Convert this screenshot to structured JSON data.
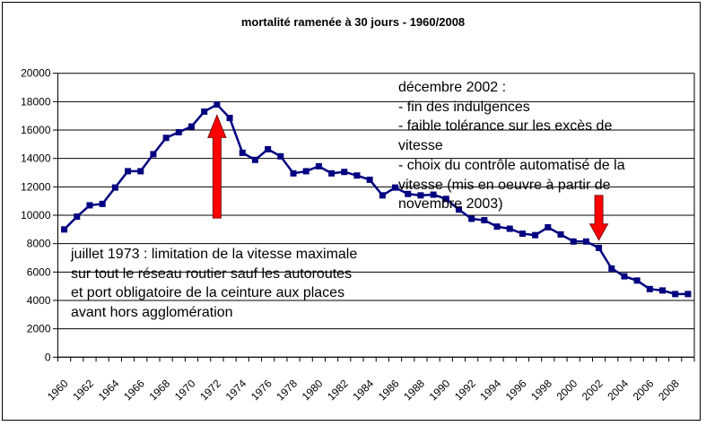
{
  "chart_data": {
    "type": "line",
    "title": "mortalité ramenée à 30 jours - 1960/2008",
    "x": [
      1960,
      1961,
      1962,
      1963,
      1964,
      1965,
      1966,
      1967,
      1968,
      1969,
      1970,
      1971,
      1972,
      1973,
      1974,
      1975,
      1976,
      1977,
      1978,
      1979,
      1980,
      1981,
      1982,
      1983,
      1984,
      1985,
      1986,
      1987,
      1988,
      1989,
      1990,
      1991,
      1992,
      1993,
      1994,
      1995,
      1996,
      1997,
      1998,
      1999,
      2000,
      2001,
      2002,
      2003,
      2004,
      2005,
      2006,
      2007,
      2008,
      2009
    ],
    "values": [
      9000,
      9900,
      10700,
      10800,
      11950,
      13100,
      13100,
      14300,
      15450,
      15850,
      16250,
      17300,
      17800,
      16850,
      14400,
      13900,
      14650,
      14150,
      12950,
      13100,
      13450,
      12950,
      13050,
      12800,
      12500,
      11400,
      11950,
      11500,
      11400,
      11450,
      11150,
      10400,
      9750,
      9650,
      9200,
      9050,
      8700,
      8600,
      9150,
      8650,
      8150,
      8150,
      7700,
      6250,
      5700,
      5400,
      4800,
      4700,
      4450,
      4450
    ],
    "ylim": [
      0,
      20000
    ],
    "yticks": [
      0,
      2000,
      4000,
      6000,
      8000,
      10000,
      12000,
      14000,
      16000,
      18000,
      20000
    ],
    "xtick_labels": [
      "1960",
      "1962",
      "1964",
      "1966",
      "1968",
      "1970",
      "1972",
      "1974",
      "1976",
      "1978",
      "1980",
      "1982",
      "1984",
      "1986",
      "1988",
      "1990",
      "1992",
      "1994",
      "1996",
      "1998",
      "2000",
      "2002",
      "2004",
      "2006",
      "2008"
    ],
    "grid": "horizontal",
    "legend": "none",
    "annotations": [
      {
        "id": "juillet-1973",
        "lines": [
          "juillet 1973 : limitation de la vitesse maximale",
          "sur tout le réseau routier sauf les autoroutes",
          "et port obligatoire de la ceinture aux places",
          "avant hors agglomération"
        ]
      },
      {
        "id": "decembre-2002",
        "lines": [
          "décembre 2002 :",
          "- fin des indulgences",
          "- faible tolérance sur les excès de",
          "vitesse",
          "- choix du contrôle automatisé de la",
          "vitesse (mis en oeuvre à partir de",
          "novembre 2003)"
        ]
      }
    ],
    "arrows": [
      {
        "id": "red-up-arrow-1972",
        "direction": "up",
        "year": 1972,
        "tip_value": 17050,
        "tail_value": 9800
      },
      {
        "id": "red-down-arrow-2002",
        "direction": "down",
        "year": 2002,
        "tip_value": 8250,
        "tail_value": 11400
      }
    ]
  },
  "colors": {
    "line": "#000080",
    "marker": "#000080",
    "arrow_fill": "#ff0000",
    "arrow_stroke": "#7f1010",
    "grid": "#000000",
    "text": "#000000",
    "background": "#ffffff"
  }
}
